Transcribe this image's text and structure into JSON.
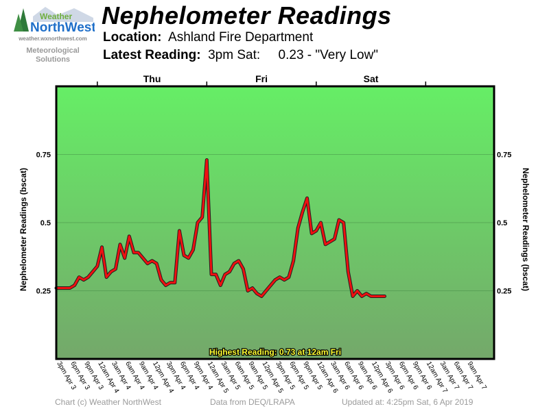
{
  "logo": {
    "text_top": "Weather",
    "text_main": "NorthWest",
    "url": "weather.wxnorthwest.com",
    "tagline_1": "Meteorological",
    "tagline_2": "Solutions"
  },
  "header": {
    "title": "Nephelometer Readings",
    "location_label": "Location:",
    "location_value": "Ashland Fire Department",
    "latest_label": "Latest Reading:",
    "latest_time": "3pm Sat:",
    "latest_value": "0.23 - \"Very Low\""
  },
  "chart_data": {
    "type": "line",
    "ylabel_left": "Nephelometer Readings (bscat)",
    "ylabel_right": "Nephelometer Readings (bscat)",
    "ylim": [
      0,
      1.0
    ],
    "yticks": [
      0.25,
      0.5,
      0.75
    ],
    "ytick_labels": [
      "0.25",
      "0.5",
      "0.75"
    ],
    "grid": true,
    "days": [
      "Thu",
      "Fri",
      "Sat"
    ],
    "xtick_labels": [
      "3pm Apr 3",
      "6pm Apr 3",
      "9pm Apr 3",
      "12am Apr 4",
      "3am Apr 4",
      "6am Apr 4",
      "9am Apr 4",
      "12pm Apr 4",
      "3pm Apr 4",
      "6pm Apr 4",
      "9pm Apr 4",
      "12am Apr 5",
      "3am Apr 5",
      "6am Apr 5",
      "9am Apr 5",
      "12pm Apr 5",
      "3pm Apr 5",
      "6pm Apr 5",
      "9pm Apr 5",
      "12am Apr 6",
      "3am Apr 6",
      "6am Apr 6",
      "9am Apr 6",
      "12pm Apr 6",
      "3pm Apr 6",
      "6pm Apr 6",
      "9pm Apr 6",
      "12am Apr 7",
      "3am Apr 7",
      "6am Apr 7",
      "9am Apr 7"
    ],
    "x_hours_from_start": [
      0,
      1,
      2,
      3,
      4,
      5,
      6,
      7,
      8,
      9,
      10,
      11,
      12,
      13,
      14,
      15,
      16,
      17,
      18,
      19,
      20,
      21,
      22,
      23,
      24,
      25,
      26,
      27,
      28,
      29,
      30,
      31,
      32,
      33,
      34,
      35,
      36,
      37,
      38,
      39,
      40,
      41,
      42,
      43,
      44,
      45,
      46,
      47,
      48,
      49,
      50,
      51,
      52,
      53,
      54,
      55,
      56,
      57,
      58,
      59,
      60,
      61,
      62,
      63,
      64,
      65,
      66,
      67,
      68,
      69,
      70,
      71,
      72
    ],
    "values": [
      0.26,
      0.26,
      0.26,
      0.26,
      0.27,
      0.3,
      0.29,
      0.3,
      0.32,
      0.34,
      0.41,
      0.3,
      0.32,
      0.33,
      0.42,
      0.37,
      0.45,
      0.39,
      0.39,
      0.37,
      0.35,
      0.36,
      0.35,
      0.29,
      0.27,
      0.28,
      0.28,
      0.47,
      0.38,
      0.37,
      0.4,
      0.5,
      0.52,
      0.73,
      0.31,
      0.31,
      0.27,
      0.31,
      0.32,
      0.35,
      0.36,
      0.33,
      0.25,
      0.26,
      0.24,
      0.23,
      0.25,
      0.27,
      0.29,
      0.3,
      0.29,
      0.3,
      0.36,
      0.48,
      0.54,
      0.59,
      0.46,
      0.47,
      0.5,
      0.42,
      0.43,
      0.44,
      0.51,
      0.5,
      0.32,
      0.23,
      0.25,
      0.23,
      0.24,
      0.23,
      0.23,
      0.23,
      0.23
    ],
    "x_axis_hours_span": 96,
    "annotation": "Highest Reading: 0.73 at 12am Fri",
    "colors": {
      "plot_top": "#66ee66",
      "plot_bottom": "#74a86a",
      "border": "#000000",
      "line": "#ee1111",
      "line_shadow": "#202020",
      "annotation_text": "#ffff33"
    }
  },
  "footer": {
    "copyright": "Chart (c) Weather NorthWest",
    "source": "Data from DEQ/LRAPA",
    "updated": "Updated at: 4:25pm Sat, 6 Apr 2019"
  }
}
